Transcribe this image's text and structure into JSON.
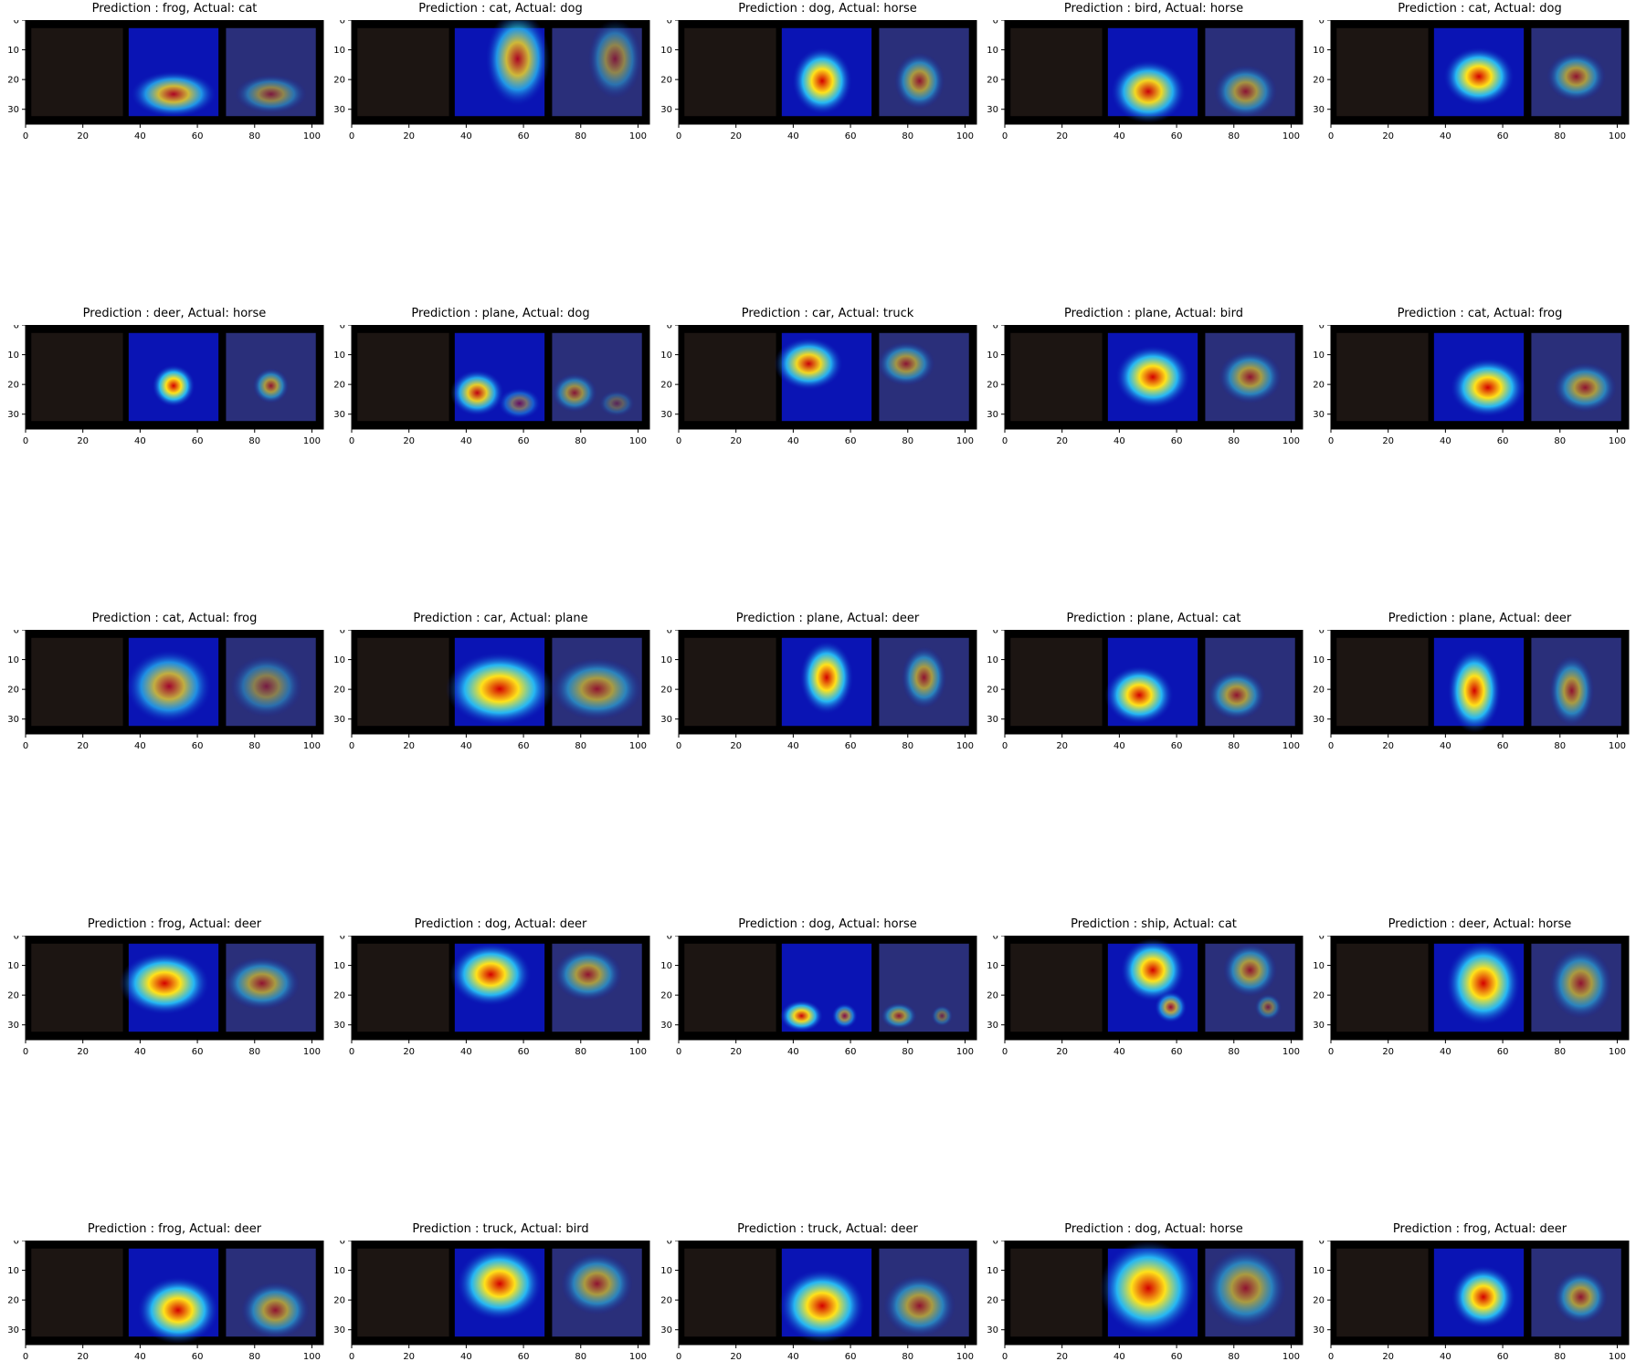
{
  "chart_data": {
    "type": "image-grid",
    "x_ticks": [
      0,
      20,
      40,
      60,
      80,
      100
    ],
    "y_ticks": [
      0,
      10,
      20,
      30
    ],
    "xlim": [
      0,
      104
    ],
    "ylim": [
      35,
      0
    ],
    "colors": {
      "background": "#000000",
      "heat_cold": "#0a14b4",
      "heat_mid": "#2ad4ff",
      "heat_warm": "#ffe21a",
      "heat_hot": "#d40000"
    },
    "panels": [
      {
        "title": "Prediction : frog, Actual: cat",
        "heat": [
          [
            0.5,
            0.75,
            0.4,
            0.22,
            0.8
          ]
        ]
      },
      {
        "title": "Prediction : cat, Actual: dog",
        "heat": [
          [
            0.7,
            0.35,
            0.3,
            0.45,
            0.8
          ]
        ]
      },
      {
        "title": "Prediction : dog, Actual: horse",
        "heat": [
          [
            0.45,
            0.6,
            0.28,
            0.32,
            1.0
          ]
        ]
      },
      {
        "title": "Prediction : bird, Actual: horse",
        "heat": [
          [
            0.45,
            0.72,
            0.35,
            0.3,
            0.95
          ]
        ]
      },
      {
        "title": "Prediction : cat, Actual: dog",
        "heat": [
          [
            0.5,
            0.55,
            0.33,
            0.28,
            1.0
          ]
        ]
      },
      {
        "title": "Prediction : deer, Actual: horse",
        "heat": [
          [
            0.5,
            0.6,
            0.2,
            0.2,
            1.0
          ]
        ]
      },
      {
        "title": "Prediction : plane, Actual: dog",
        "heat": [
          [
            0.25,
            0.68,
            0.25,
            0.22,
            0.9
          ],
          [
            0.72,
            0.8,
            0.2,
            0.15,
            0.45
          ]
        ]
      },
      {
        "title": "Prediction : car, Actual: truck",
        "heat": [
          [
            0.3,
            0.35,
            0.32,
            0.25,
            0.95
          ]
        ]
      },
      {
        "title": "Prediction : plane, Actual: bird",
        "heat": [
          [
            0.5,
            0.5,
            0.35,
            0.3,
            1.0
          ]
        ]
      },
      {
        "title": "Prediction : cat, Actual: frog",
        "heat": [
          [
            0.6,
            0.62,
            0.35,
            0.28,
            1.0
          ]
        ]
      },
      {
        "title": "Prediction : cat, Actual: frog",
        "heat": [
          [
            0.45,
            0.55,
            0.4,
            0.35,
            0.75
          ]
        ]
      },
      {
        "title": "Prediction : car, Actual: plane",
        "heat": [
          [
            0.5,
            0.58,
            0.5,
            0.35,
            1.0
          ]
        ]
      },
      {
        "title": "Prediction : plane, Actual: deer",
        "heat": [
          [
            0.5,
            0.45,
            0.25,
            0.35,
            1.0
          ]
        ]
      },
      {
        "title": "Prediction : plane, Actual: cat",
        "heat": [
          [
            0.35,
            0.65,
            0.32,
            0.28,
            1.0
          ]
        ]
      },
      {
        "title": "Prediction : plane, Actual: deer",
        "heat": [
          [
            0.45,
            0.6,
            0.25,
            0.4,
            1.0
          ]
        ]
      },
      {
        "title": "Prediction : frog, Actual: deer",
        "heat": [
          [
            0.4,
            0.45,
            0.42,
            0.3,
            1.0
          ]
        ]
      },
      {
        "title": "Prediction : dog, Actual: deer",
        "heat": [
          [
            0.4,
            0.35,
            0.38,
            0.3,
            1.0
          ]
        ]
      },
      {
        "title": "Prediction : dog, Actual: horse",
        "heat": [
          [
            0.22,
            0.82,
            0.2,
            0.15,
            0.95
          ],
          [
            0.7,
            0.82,
            0.12,
            0.12,
            0.6
          ]
        ]
      },
      {
        "title": "Prediction : ship, Actual: cat",
        "heat": [
          [
            0.5,
            0.3,
            0.3,
            0.3,
            1.0
          ],
          [
            0.7,
            0.72,
            0.15,
            0.15,
            0.7
          ]
        ]
      },
      {
        "title": "Prediction : deer, Actual: horse",
        "heat": [
          [
            0.55,
            0.45,
            0.35,
            0.4,
            1.0
          ]
        ]
      },
      {
        "title": "Prediction : frog, Actual: deer",
        "heat": [
          [
            0.55,
            0.7,
            0.38,
            0.32,
            1.0
          ]
        ]
      },
      {
        "title": "Prediction : truck, Actual: bird",
        "heat": [
          [
            0.5,
            0.4,
            0.4,
            0.35,
            1.0
          ]
        ]
      },
      {
        "title": "Prediction : truck, Actual: deer",
        "heat": [
          [
            0.45,
            0.65,
            0.4,
            0.35,
            1.0
          ]
        ]
      },
      {
        "title": "Prediction : dog, Actual: horse",
        "heat": [
          [
            0.45,
            0.45,
            0.45,
            0.45,
            1.0
          ]
        ]
      },
      {
        "title": "Prediction : frog, Actual: deer",
        "heat": [
          [
            0.55,
            0.55,
            0.3,
            0.3,
            1.0
          ]
        ]
      }
    ]
  }
}
